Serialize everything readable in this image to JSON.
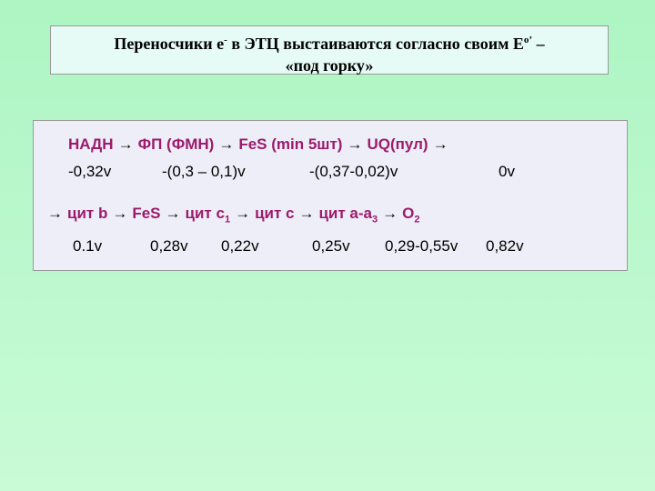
{
  "header": {
    "title_parts": [
      "Переносчики e",
      "-",
      " в ЭТЦ выстаиваются согласно своим E",
      "o’",
      " –",
      "«под  горку»"
    ]
  },
  "arrow": "→",
  "chains": [
    {
      "arrow_before": false,
      "arrow_after": true,
      "carriers": [
        {
          "text": "НАДН"
        },
        {
          "text": "ФП (ФМН)"
        },
        {
          "text": "FeS (min 5шт)"
        },
        {
          "text": "UQ(пул)"
        }
      ],
      "potentials": [
        "-0,32v",
        "-(0,3 – 0,1)v",
        "-(0,37-0,02)v",
        "0v"
      ]
    },
    {
      "arrow_before": true,
      "arrow_after": false,
      "carriers": [
        {
          "text": "цит b"
        },
        {
          "text": "FeS"
        },
        {
          "text": "цит с",
          "sub": "1"
        },
        {
          "text": "цит с"
        },
        {
          "text": "цит а-а",
          "sub": "3"
        },
        {
          "text": "О",
          "sub": "2"
        }
      ],
      "potentials": [
        "0.1v",
        "0,28v",
        "0,22v",
        "0,25v",
        "0,29-0,55v",
        "0,82v"
      ]
    }
  ]
}
